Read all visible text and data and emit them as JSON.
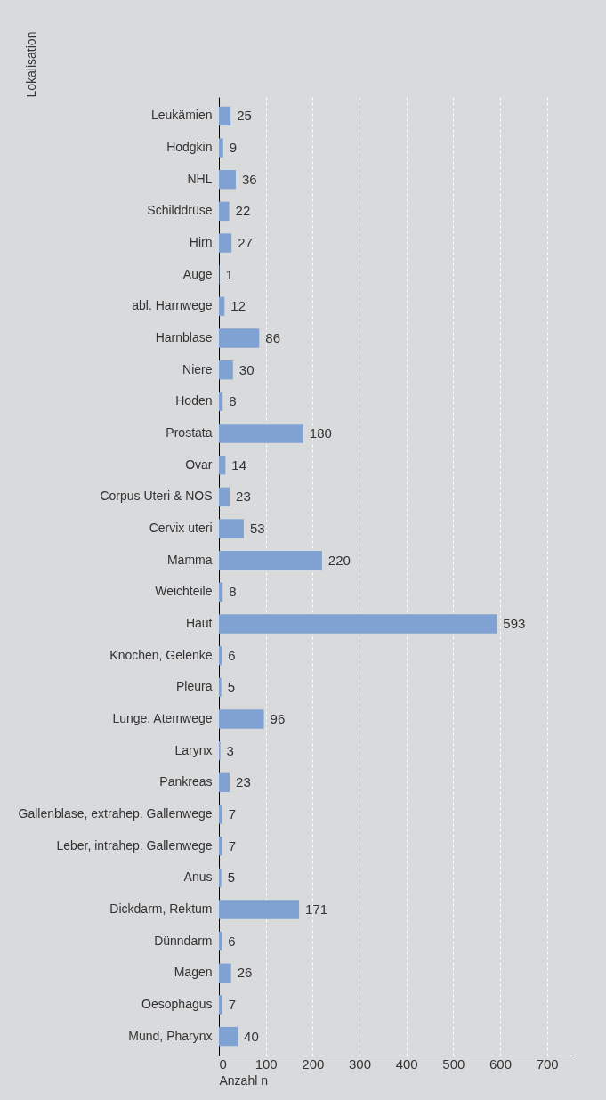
{
  "chart_data": {
    "type": "bar",
    "orientation": "horizontal",
    "xlabel": "Anzahl n",
    "ylabel": "Lokalisation",
    "categories": [
      "Leukämien",
      "Hodgkin",
      "NHL",
      "Schilddrüse",
      "Hirn",
      "Auge",
      "abl. Harnwege",
      "Harnblase",
      "Niere",
      "Hoden",
      "Prostata",
      "Ovar",
      "Corpus Uteri & NOS",
      "Cervix uteri",
      "Mamma",
      "Weichteile",
      "Haut",
      "Knochen, Gelenke",
      "Pleura",
      "Lunge, Atemwege",
      "Larynx",
      "Pankreas",
      "Gallenblase, extrahep. Gallenwege",
      "Leber, intrahep. Gallenwege",
      "Anus",
      "Dickdarm, Rektum",
      "Dünndarm",
      "Magen",
      "Oesophagus",
      "Mund, Pharynx"
    ],
    "values": [
      25,
      9,
      36,
      22,
      27,
      1,
      12,
      86,
      30,
      8,
      180,
      14,
      23,
      53,
      220,
      8,
      593,
      6,
      5,
      96,
      3,
      23,
      7,
      7,
      5,
      171,
      6,
      26,
      7,
      40
    ],
    "color": "#7fa2d2",
    "xlim": [
      0,
      750
    ],
    "xticks": [
      0,
      100,
      200,
      300,
      400,
      500,
      600,
      700
    ],
    "grid": "x",
    "data_labels": true
  }
}
